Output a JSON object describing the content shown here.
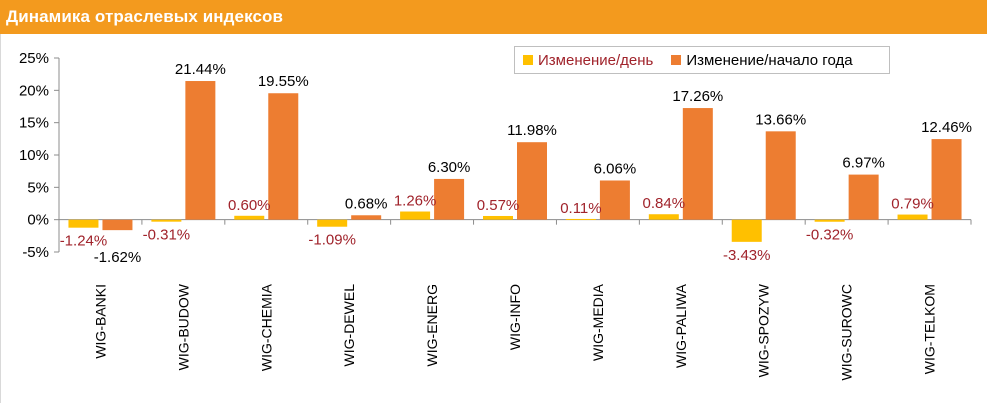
{
  "header": {
    "title": "Динамика отраслевых индексов"
  },
  "colors": {
    "header_bg": "#f39a1e",
    "daily": "#ffc000",
    "ytd": "#ed7d31",
    "daily_label": "#a0232b",
    "ytd_label": "#000000"
  },
  "chart_data": {
    "type": "bar",
    "title": "Динамика отраслевых индексов",
    "categories": [
      "WIG-BANKI",
      "WIG-BUDOW",
      "WIG-CHEMIA",
      "WIG-DEWEL",
      "WIG-ENERG",
      "WIG-INFO",
      "WIG-MEDIA",
      "WIG-PALIWA",
      "WIG-SPOZYW",
      "WIG-SUROWC",
      "WIG-TELKOM"
    ],
    "series": [
      {
        "name": "Изменение/день",
        "values": [
          -1.24,
          -0.31,
          0.6,
          -1.09,
          1.26,
          0.57,
          0.11,
          0.84,
          -3.43,
          -0.32,
          0.79
        ],
        "labels": [
          "-1.24%",
          "-0.31%",
          "0.60%",
          "-1.09%",
          "1.26%",
          "0.57%",
          "0.11%",
          "0.84%",
          "-3.43%",
          "-0.32%",
          "0.79%"
        ]
      },
      {
        "name": "Изменение/начало года",
        "values": [
          -1.62,
          21.44,
          19.55,
          0.68,
          6.3,
          11.98,
          6.06,
          17.26,
          13.66,
          6.97,
          12.46
        ],
        "labels": [
          "-1.62%",
          "21.44%",
          "19.55%",
          "0.68%",
          "6.30%",
          "11.98%",
          "6.06%",
          "17.26%",
          "13.66%",
          "6.97%",
          "12.46%"
        ]
      }
    ],
    "y_ticks": [
      "25%",
      "20%",
      "15%",
      "10%",
      "5%",
      "0%",
      "-5%"
    ],
    "y_tick_values": [
      25,
      20,
      15,
      10,
      5,
      0,
      -5
    ],
    "ylim": [
      -5,
      25
    ],
    "xlabel": "",
    "ylabel": "",
    "grid": false,
    "legend_position": "top-right"
  }
}
